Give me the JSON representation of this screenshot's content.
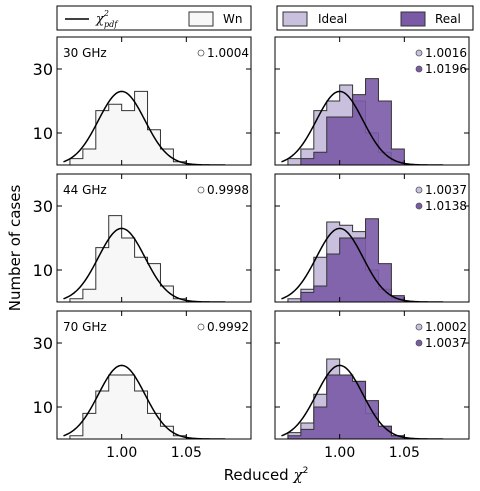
{
  "figure": {
    "ylabel": "Number of cases",
    "xlabel_prefix": "Reduced ",
    "xlabel_symbol": "χ",
    "xlabel_sup": "2"
  },
  "legends": {
    "left": {
      "curve_label_sym": "χ",
      "curve_label_sup": "2",
      "curve_label_sub": "pdf",
      "box_label": "Wn"
    },
    "right": {
      "ideal_label": "Ideal",
      "real_label": "Real"
    }
  },
  "colors": {
    "wn_fill": "#f7f7f7",
    "ideal_fill": "#c8c0dd",
    "real_fill": "#7a5aa6",
    "outline": "#333333",
    "curve": "#000000"
  },
  "chart_data": [
    {
      "type": "histogram",
      "row": 0,
      "col": 0,
      "panel_label": "30 GHz",
      "annotations": [
        {
          "text": "1.0004",
          "marker": "#ffffff"
        }
      ],
      "xlim": [
        0.95,
        1.1
      ],
      "ylim": [
        0,
        40
      ],
      "xticks": [
        1.0,
        1.05
      ],
      "xtick_labels": [
        "1.00",
        "1.05"
      ],
      "yticks": [
        10,
        30
      ],
      "ytick_labels": [
        "10",
        "30"
      ],
      "bin_edges": [
        0.96,
        0.97,
        0.98,
        0.99,
        1.0,
        1.01,
        1.02,
        1.03,
        1.04,
        1.05
      ],
      "series": [
        {
          "name": "Wn",
          "values": [
            2,
            5,
            17,
            19,
            17,
            23,
            11,
            5,
            1
          ]
        }
      ],
      "curve_scale": 23
    },
    {
      "type": "histogram",
      "row": 0,
      "col": 1,
      "panel_label": "",
      "annotations": [
        {
          "text": "1.0016",
          "marker": "#c8c0dd"
        },
        {
          "text": "1.0196",
          "marker": "#7a5aa6"
        }
      ],
      "xlim": [
        0.95,
        1.1
      ],
      "ylim": [
        0,
        40
      ],
      "xticks": [
        1.0,
        1.05
      ],
      "xtick_labels": [
        "1.00",
        "1.05"
      ],
      "yticks": [
        10,
        30
      ],
      "ytick_labels": [
        "10",
        "30"
      ],
      "bin_edges": [
        0.96,
        0.97,
        0.98,
        0.99,
        1.0,
        1.01,
        1.02,
        1.03,
        1.04,
        1.05
      ],
      "series": [
        {
          "name": "Ideal",
          "values": [
            2,
            5,
            17,
            20,
            25,
            20,
            10,
            4,
            1
          ]
        },
        {
          "name": "Real",
          "values": [
            0,
            2,
            4,
            15,
            15,
            22,
            27,
            20,
            5
          ]
        }
      ],
      "curve_scale": 23
    },
    {
      "type": "histogram",
      "row": 1,
      "col": 0,
      "panel_label": "44 GHz",
      "annotations": [
        {
          "text": "0.9998",
          "marker": "#ffffff"
        }
      ],
      "xlim": [
        0.95,
        1.1
      ],
      "ylim": [
        0,
        40
      ],
      "xticks": [
        1.0,
        1.05
      ],
      "xtick_labels": [
        "1.00",
        "1.05"
      ],
      "yticks": [
        10,
        30
      ],
      "ytick_labels": [
        "10",
        "30"
      ],
      "bin_edges": [
        0.96,
        0.97,
        0.98,
        0.99,
        1.0,
        1.01,
        1.02,
        1.03,
        1.04,
        1.05
      ],
      "series": [
        {
          "name": "Wn",
          "values": [
            1,
            4,
            17,
            27,
            20,
            14,
            12,
            5,
            1
          ]
        }
      ],
      "curve_scale": 23
    },
    {
      "type": "histogram",
      "row": 1,
      "col": 1,
      "panel_label": "",
      "annotations": [
        {
          "text": "1.0037",
          "marker": "#c8c0dd"
        },
        {
          "text": "1.0138",
          "marker": "#7a5aa6"
        }
      ],
      "xlim": [
        0.95,
        1.1
      ],
      "ylim": [
        0,
        40
      ],
      "xticks": [
        1.0,
        1.05
      ],
      "xtick_labels": [
        "1.00",
        "1.05"
      ],
      "yticks": [
        10,
        30
      ],
      "ytick_labels": [
        "10",
        "30"
      ],
      "bin_edges": [
        0.96,
        0.97,
        0.98,
        0.99,
        1.0,
        1.01,
        1.02,
        1.03,
        1.04,
        1.05
      ],
      "series": [
        {
          "name": "Ideal",
          "values": [
            1,
            4,
            14,
            25,
            24,
            22,
            10,
            4,
            1
          ]
        },
        {
          "name": "Real",
          "values": [
            0,
            3,
            5,
            15,
            20,
            20,
            26,
            12,
            2
          ]
        }
      ],
      "curve_scale": 23
    },
    {
      "type": "histogram",
      "row": 2,
      "col": 0,
      "panel_label": "70 GHz",
      "annotations": [
        {
          "text": "0.9992",
          "marker": "#ffffff"
        }
      ],
      "xlim": [
        0.95,
        1.1
      ],
      "ylim": [
        0,
        40
      ],
      "xticks": [
        1.0,
        1.05
      ],
      "xtick_labels": [
        "1.00",
        "1.05"
      ],
      "yticks": [
        10,
        30
      ],
      "ytick_labels": [
        "10",
        "30"
      ],
      "bin_edges": [
        0.96,
        0.97,
        0.98,
        0.99,
        1.0,
        1.01,
        1.02,
        1.03,
        1.04,
        1.05
      ],
      "series": [
        {
          "name": "Wn",
          "values": [
            1,
            8,
            15,
            20,
            20,
            15,
            8,
            4,
            1
          ]
        }
      ],
      "curve_scale": 23
    },
    {
      "type": "histogram",
      "row": 2,
      "col": 1,
      "panel_label": "",
      "annotations": [
        {
          "text": "1.0002",
          "marker": "#c8c0dd"
        },
        {
          "text": "1.0037",
          "marker": "#7a5aa6"
        }
      ],
      "xlim": [
        0.95,
        1.1
      ],
      "ylim": [
        0,
        40
      ],
      "xticks": [
        1.0,
        1.05
      ],
      "xtick_labels": [
        "1.00",
        "1.05"
      ],
      "yticks": [
        10,
        30
      ],
      "ytick_labels": [
        "10",
        "30"
      ],
      "bin_edges": [
        0.96,
        0.97,
        0.98,
        0.99,
        1.0,
        1.01,
        1.02,
        1.03,
        1.04,
        1.05
      ],
      "series": [
        {
          "name": "Ideal",
          "values": [
            2,
            5,
            14,
            25,
            20,
            18,
            8,
            4,
            1
          ]
        },
        {
          "name": "Real",
          "values": [
            1,
            3,
            10,
            20,
            20,
            18,
            12,
            4,
            1
          ]
        }
      ],
      "curve_scale": 23
    }
  ]
}
